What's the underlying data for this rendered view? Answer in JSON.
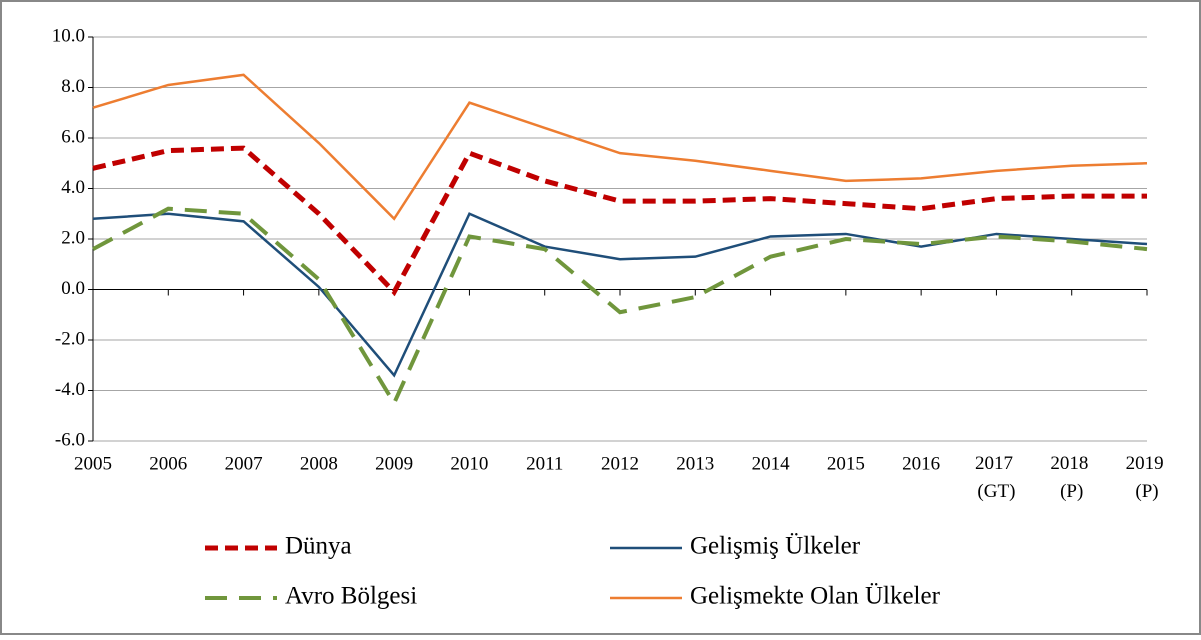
{
  "chart_data": {
    "type": "line",
    "categories": [
      "2005",
      "2006",
      "2007",
      "2008",
      "2009",
      "2010",
      "2011",
      "2012",
      "2013",
      "2014",
      "2015",
      "2016",
      "2017 (GT)",
      "2018 (P)",
      "2019 (P)"
    ],
    "series": [
      {
        "name": "Dünya",
        "color": "#c00000",
        "dash": "13,7",
        "width": 5,
        "values": [
          4.8,
          5.5,
          5.6,
          3.0,
          -0.1,
          5.4,
          4.3,
          3.5,
          3.5,
          3.6,
          3.4,
          3.2,
          3.6,
          3.7,
          3.7
        ]
      },
      {
        "name": "Gelişmiş Ülkeler",
        "color": "#1f4e79",
        "width": 2.5,
        "values": [
          2.8,
          3.0,
          2.7,
          0.1,
          -3.4,
          3.0,
          1.7,
          1.2,
          1.3,
          2.1,
          2.2,
          1.7,
          2.2,
          2.0,
          1.8
        ]
      },
      {
        "name": "Avro Bölgesi",
        "color": "#70963c",
        "dash": "22,12",
        "width": 4,
        "values": [
          1.6,
          3.2,
          3.0,
          0.4,
          -4.5,
          2.1,
          1.6,
          -0.9,
          -0.3,
          1.3,
          2.0,
          1.8,
          2.1,
          1.9,
          1.6
        ]
      },
      {
        "name": "Gelişmekte Olan Ülkeler",
        "color": "#ed7d31",
        "width": 2.5,
        "values": [
          7.2,
          8.1,
          8.5,
          5.8,
          2.8,
          7.4,
          6.4,
          5.4,
          5.1,
          4.7,
          4.3,
          4.4,
          4.7,
          4.9,
          5.0
        ]
      }
    ],
    "ylim": [
      -6,
      10
    ],
    "yticks": [
      {
        "value": -6,
        "label": "-6.0"
      },
      {
        "value": -4,
        "label": "-4.0"
      },
      {
        "value": -2,
        "label": "-2.0"
      },
      {
        "value": 0,
        "label": "0.0"
      },
      {
        "value": 2,
        "label": "2.0"
      },
      {
        "value": 4,
        "label": "4.0"
      },
      {
        "value": 6,
        "label": "6.0"
      },
      {
        "value": 8,
        "label": "8.0"
      },
      {
        "value": 10,
        "label": "10.0"
      }
    ],
    "grid": true
  }
}
